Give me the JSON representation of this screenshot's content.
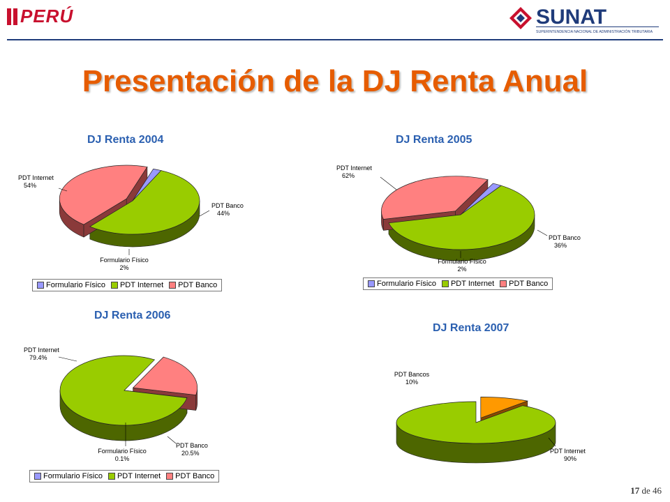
{
  "header": {
    "peru_logo_text": "PERÚ",
    "sunat_logo_text": "SUNAT",
    "sunat_subtitle": "SUPERINTENDENCIA NACIONAL DE ADMINISTRACIÓN TRIBUTARIA"
  },
  "page_title": "Presentación de la DJ Renta Anual",
  "footer": {
    "current": "17",
    "separator": "de",
    "total": "46"
  },
  "colors": {
    "Formulario Físico": {
      "top": "#9999ff",
      "side": "#3a3a8a"
    },
    "PDT Internet": {
      "top": "#99cc00",
      "side": "#4d6600"
    },
    "PDT Banco": {
      "top": "#ff8080",
      "side": "#8a3a3a"
    },
    "PDT Bancos": {
      "top": "#ff9900",
      "side": "#8a4a00"
    }
  },
  "chart_data": [
    {
      "type": "pie",
      "title": "DJ Renta 2004",
      "categories": [
        "Formulario Físico",
        "PDT Internet",
        "PDT Banco"
      ],
      "values": [
        2,
        54,
        44
      ],
      "labels": [
        {
          "name": "Formulario Físico",
          "value": "2%"
        },
        {
          "name": "PDT Internet",
          "value": "54%"
        },
        {
          "name": "PDT Banco",
          "value": "44%"
        }
      ],
      "legend": [
        "Formulario Físico",
        "PDT Internet",
        "PDT Banco"
      ]
    },
    {
      "type": "pie",
      "title": "DJ Renta 2005",
      "categories": [
        "Formulario Físico",
        "PDT Internet",
        "PDT Banco"
      ],
      "values": [
        2,
        62,
        36
      ],
      "labels": [
        {
          "name": "Formulario Físico",
          "value": "2%"
        },
        {
          "name": "PDT Internet",
          "value": "62%"
        },
        {
          "name": "PDT Banco",
          "value": "36%"
        }
      ],
      "legend": [
        "Formulario Físico",
        "PDT Internet",
        "PDT Banco"
      ]
    },
    {
      "type": "pie",
      "title": "DJ Renta 2006",
      "categories": [
        "Formulario Físico",
        "PDT Internet",
        "PDT Banco"
      ],
      "values": [
        0.1,
        79.4,
        20.5
      ],
      "labels": [
        {
          "name": "Formulario Físico",
          "value": "0.1%"
        },
        {
          "name": "PDT Internet",
          "value": "79.4%"
        },
        {
          "name": "PDT Banco",
          "value": "20.5%"
        }
      ],
      "legend": [
        "Formulario Físico",
        "PDT Internet",
        "PDT Banco"
      ]
    },
    {
      "type": "pie",
      "title": "DJ Renta 2007",
      "categories": [
        "PDT Bancos",
        "PDT Internet"
      ],
      "values": [
        10,
        90
      ],
      "labels": [
        {
          "name": "PDT Bancos",
          "value": "10%"
        },
        {
          "name": "PDT Internet",
          "value": "90%"
        }
      ],
      "legend": []
    }
  ]
}
